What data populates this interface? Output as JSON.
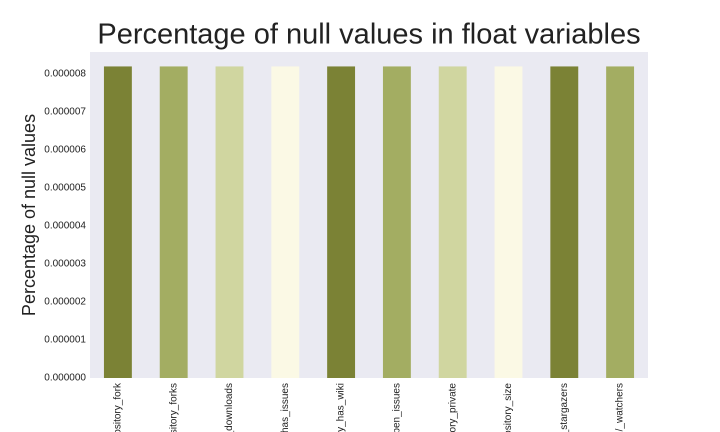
{
  "chart_data": {
    "type": "bar",
    "title": "Percentage of null values in float variables",
    "y_label": "Percentage of null values",
    "categories": [
      "ository_fork",
      "sitory_forks",
      "_downloads",
      "has_issues",
      "y_has_wiki",
      "pen_issues",
      "ory_private",
      "ository_size",
      "_stargazers",
      "/_watchers"
    ],
    "values": [
      8.2e-06,
      8.2e-06,
      8.2e-06,
      8.2e-06,
      8.2e-06,
      8.2e-06,
      8.2e-06,
      8.2e-06,
      8.2e-06,
      8.2e-06
    ],
    "colors": [
      "#7b8235",
      "#a3ad62",
      "#d0d6a0",
      "#fbf9e5",
      "#7b8235",
      "#a3ad62",
      "#d0d6a0",
      "#fbf9e5",
      "#7b8235",
      "#a3ad62"
    ],
    "ylim": [
      0,
      8.58e-06
    ],
    "yticks": [
      {
        "value": 0,
        "label": "0.000000"
      },
      {
        "value": 1e-06,
        "label": "0.000001"
      },
      {
        "value": 2e-06,
        "label": "0.000002"
      },
      {
        "value": 3e-06,
        "label": "0.000003"
      },
      {
        "value": 4e-06,
        "label": "0.000004"
      },
      {
        "value": 5e-06,
        "label": "0.000005"
      },
      {
        "value": 6e-06,
        "label": "0.000006"
      },
      {
        "value": 7e-06,
        "label": "0.000007"
      },
      {
        "value": 8e-06,
        "label": "0.000008"
      }
    ],
    "grid": false
  }
}
